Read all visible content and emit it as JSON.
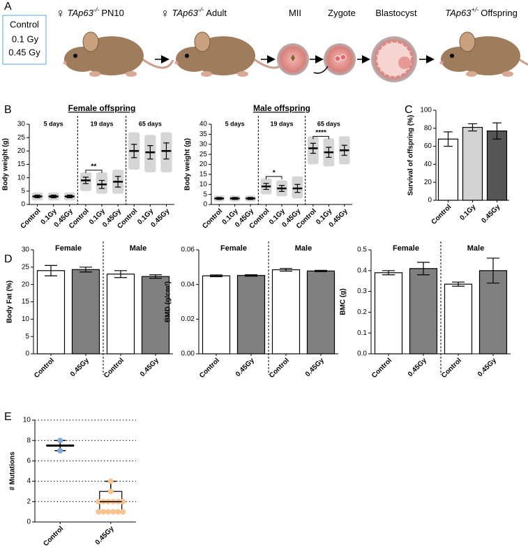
{
  "schematic": {
    "panel": "A",
    "doses": [
      "Control",
      "0.1 Gy",
      "0.45 Gy"
    ],
    "stages": [
      {
        "symbol": "♀",
        "gene": "TAp63",
        "genotype": "-/-",
        "label": "PN10"
      },
      {
        "symbol": "♀",
        "gene": "TAp63",
        "genotype": "-/-",
        "label": "Adult"
      },
      {
        "label": "MII"
      },
      {
        "label": "Zygote"
      },
      {
        "label": "Blastocyst"
      },
      {
        "gene": "TAp63",
        "genotype": "+/-",
        "label": "Offspring"
      }
    ]
  },
  "chart_data": [
    {
      "type": "dotplot",
      "panel": "B",
      "title": "Female offspring",
      "ylabel": "Body weight (g)",
      "groups": [
        "5 days",
        "19 days",
        "65 days"
      ],
      "categories": [
        "Control",
        "0.1Gy",
        "0.45Gy",
        "Control",
        "0.1Gy",
        "0.45Gy",
        "Control",
        "0.1Gy",
        "0.45Gy"
      ],
      "mean": [
        3,
        3,
        3,
        9,
        7.5,
        8.5,
        20,
        19.5,
        20
      ],
      "sd": [
        0.5,
        0.5,
        0.5,
        1.2,
        1.5,
        2,
        2.5,
        2.5,
        3
      ],
      "range_min": [
        1.5,
        1.5,
        1.5,
        5,
        4,
        4,
        13,
        12,
        12
      ],
      "range_max": [
        4.5,
        4.5,
        4.5,
        12,
        12,
        13,
        27,
        26,
        27
      ],
      "significance": [
        null,
        "**",
        null
      ],
      "color": "#b5b5b5",
      "ylim": [
        0,
        30
      ],
      "yticks": [
        0,
        5,
        10,
        15,
        20,
        25,
        30
      ]
    },
    {
      "type": "dotplot",
      "title": "Male offspring",
      "ylabel": "Body weight (g)",
      "groups": [
        "5 days",
        "19 days",
        "65 days"
      ],
      "categories": [
        "Control",
        "0.1Gy",
        "0.45Gy",
        "Control",
        "0.1Gy",
        "0.45Gy",
        "Control",
        "0.1Gy",
        "0.45Gy"
      ],
      "mean": [
        3,
        3,
        3,
        9,
        8,
        8,
        28,
        26,
        27
      ],
      "sd": [
        0.5,
        0.5,
        0.5,
        1.5,
        1.5,
        2,
        2.5,
        2.5,
        2.5
      ],
      "range_min": [
        1.5,
        1.5,
        1.5,
        5,
        4,
        3,
        20,
        19,
        20
      ],
      "range_max": [
        4.5,
        4.5,
        4.5,
        13,
        12,
        14,
        34,
        33,
        34
      ],
      "significance": [
        null,
        "*",
        "****"
      ],
      "color": "#b5b5b5",
      "ylim": [
        0,
        40
      ],
      "yticks": [
        0,
        5,
        10,
        15,
        20,
        25,
        30,
        35,
        40
      ]
    },
    {
      "type": "bar",
      "panel": "C",
      "ylabel": "Survival of offspring (%)",
      "categories": [
        "Control",
        "0.1Gy",
        "0.45Gy"
      ],
      "values": [
        68,
        81,
        77
      ],
      "errors": [
        8,
        4,
        9
      ],
      "colors": [
        "#ffffff",
        "#d3d3d3",
        "#555555"
      ],
      "ylim": [
        0,
        100
      ],
      "yticks": [
        0,
        20,
        40,
        60,
        80,
        100
      ]
    },
    {
      "type": "bar",
      "panel": "D",
      "ylabel": "Body Fat (%)",
      "groups": [
        "Female",
        "Male"
      ],
      "categories": [
        "Control",
        "0.45Gy",
        "Control",
        "0.45Gy"
      ],
      "values": [
        24,
        24.3,
        23,
        22.3
      ],
      "errors": [
        1.5,
        0.7,
        1,
        0.5
      ],
      "colors": [
        "#ffffff",
        "#808080",
        "#ffffff",
        "#808080"
      ],
      "ylim": [
        0,
        30
      ],
      "yticks": [
        0,
        5,
        10,
        15,
        20,
        25,
        30
      ]
    },
    {
      "type": "bar",
      "ylabel": "BMD (g/cm²)",
      "groups": [
        "Female",
        "Male"
      ],
      "categories": [
        "Control",
        "0.45Gy",
        "Control",
        "0.45Gy"
      ],
      "values": [
        0.045,
        0.0452,
        0.0485,
        0.0478
      ],
      "errors": [
        0.0005,
        0.0004,
        0.0008,
        0.0004
      ],
      "colors": [
        "#ffffff",
        "#808080",
        "#ffffff",
        "#808080"
      ],
      "ylim": [
        0,
        0.06
      ],
      "yticks": [
        {
          "value": 0,
          "label": "0.00"
        },
        {
          "value": 0.02,
          "label": "0.02"
        },
        {
          "value": 0.04,
          "label": "0.04"
        },
        {
          "value": 0.06,
          "label": "0.06"
        }
      ]
    },
    {
      "type": "bar",
      "ylabel": "BMC (g)",
      "groups": [
        "Female",
        "Male"
      ],
      "categories": [
        "Control",
        "0.45Gy",
        "Control",
        "0.45Gy"
      ],
      "values": [
        0.39,
        0.41,
        0.335,
        0.4
      ],
      "errors": [
        0.01,
        0.03,
        0.01,
        0.06
      ],
      "colors": [
        "#ffffff",
        "#808080",
        "#ffffff",
        "#808080"
      ],
      "ylim": [
        0,
        0.5
      ],
      "yticks": [
        {
          "value": 0,
          "label": "0.0"
        },
        0.1,
        0.2,
        0.3,
        0.4,
        0.5
      ]
    },
    {
      "type": "box",
      "panel": "E",
      "ylabel": "# Mutations",
      "categories": [
        "Control",
        "0.45Gy"
      ],
      "boxes": [
        {
          "min": 7,
          "q1": 7.5,
          "median": 7.5,
          "q3": 7.5,
          "max": 8,
          "points": [
            8,
            7
          ],
          "color": "#7ea9d8"
        },
        {
          "min": 1,
          "q1": 1,
          "median": 2,
          "q3": 3,
          "max": 4,
          "points": [
            4,
            3,
            2,
            2,
            2,
            2,
            2,
            2,
            1,
            1,
            1,
            1,
            1,
            1
          ],
          "color": "#f9c38f"
        }
      ],
      "grid": true,
      "ylim": [
        0,
        10
      ],
      "yticks": [
        0,
        2,
        4,
        6,
        8,
        10
      ]
    }
  ]
}
